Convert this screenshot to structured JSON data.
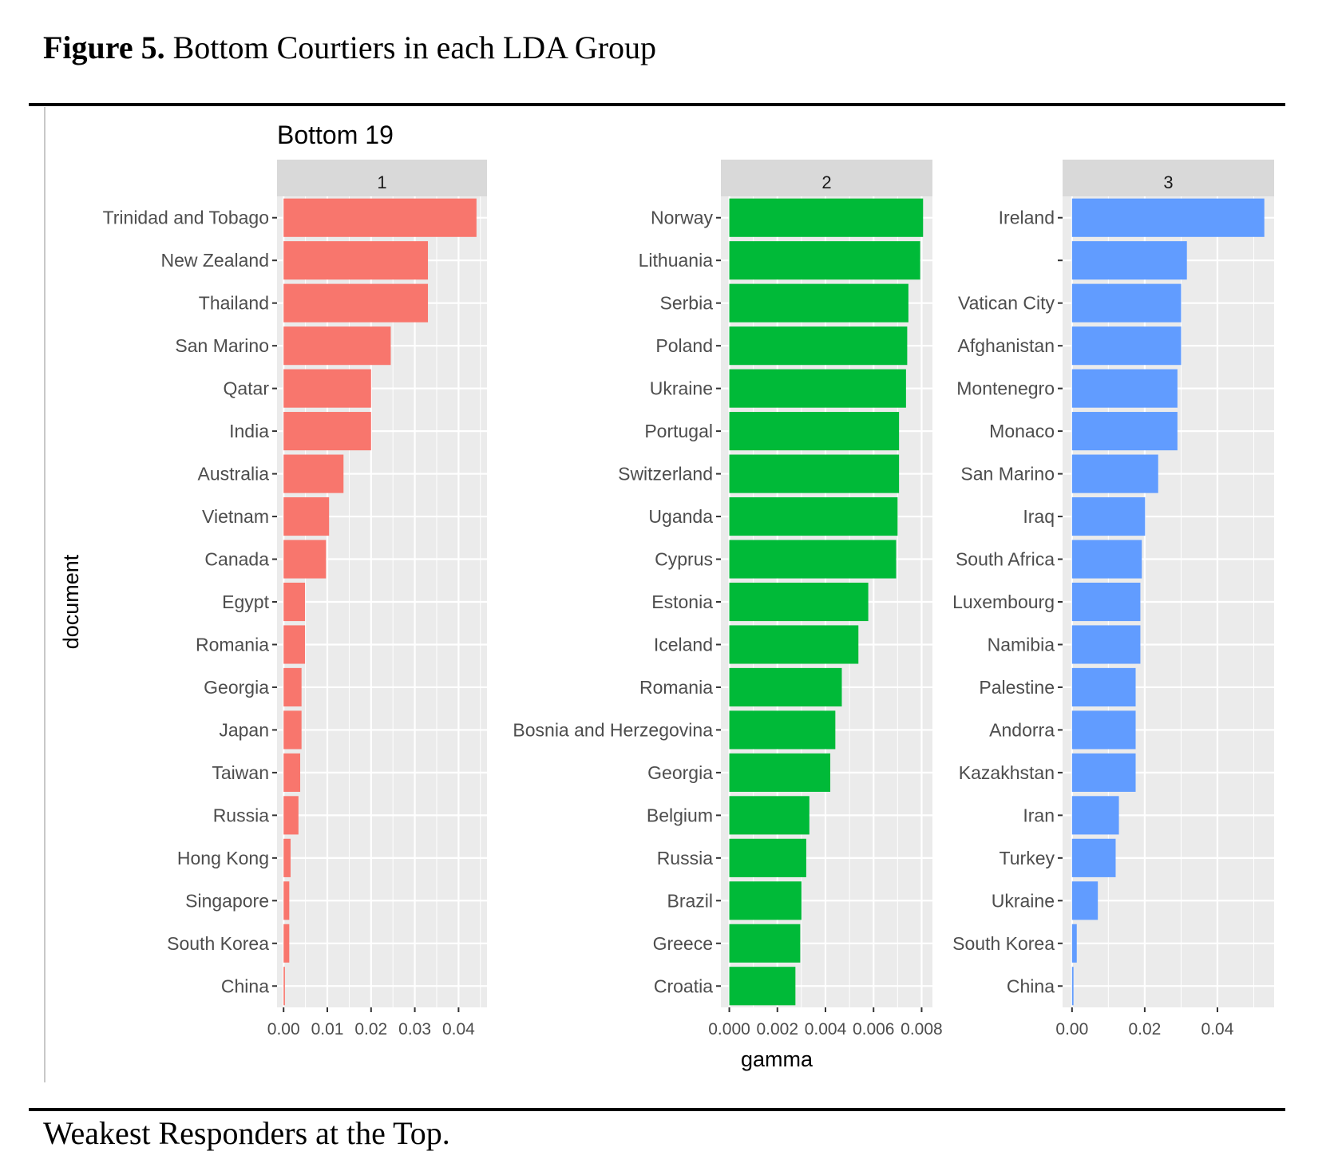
{
  "figure": {
    "caption_label": "Figure 5.",
    "caption_text": "Bottom Courtiers in each LDA Group",
    "note": "Weakest Responders at the Top."
  },
  "chart_data": {
    "type": "bar",
    "orientation": "horizontal",
    "title": "Bottom 19",
    "xlabel": "gamma",
    "ylabel": "document",
    "grid": true,
    "panels": [
      {
        "label": "1",
        "color": "#F8766D",
        "xlim": [
          -0.0015,
          0.0465
        ],
        "ticks": [
          0.0,
          0.01,
          0.02,
          0.03,
          0.04
        ],
        "tick_labels": [
          "0.00",
          "0.01",
          "0.02",
          "0.03",
          "0.04"
        ],
        "categories": [
          "Trinidad and Tobago",
          "New Zealand",
          "Thailand",
          "San Marino",
          "Qatar",
          "India",
          "Australia",
          "Vietnam",
          "Canada",
          "Egypt",
          "Romania",
          "Georgia",
          "Japan",
          "Taiwan",
          "Russia",
          "Hong Kong",
          "Singapore",
          "South Korea",
          "China"
        ],
        "values": [
          0.0441,
          0.033,
          0.033,
          0.0245,
          0.02,
          0.02,
          0.0137,
          0.0104,
          0.0097,
          0.0049,
          0.0049,
          0.0041,
          0.0041,
          0.0038,
          0.0034,
          0.0016,
          0.0013,
          0.0013,
          0.0003
        ]
      },
      {
        "label": "2",
        "color": "#00BA38",
        "xlim": [
          -0.00035,
          0.00845
        ],
        "ticks": [
          0.0,
          0.002,
          0.004,
          0.006,
          0.008
        ],
        "tick_labels": [
          "0.000",
          "0.002",
          "0.004",
          "0.006",
          "0.008"
        ],
        "categories": [
          "Norway",
          "Lithuania",
          "Serbia",
          "Poland",
          "Ukraine",
          "Portugal",
          "Switzerland",
          "Uganda",
          "Cyprus",
          "Estonia",
          "Iceland",
          "Romania",
          "Bosnia and Herzegovina",
          "Georgia",
          "Belgium",
          "Russia",
          "Brazil",
          "Greece",
          "Croatia"
        ],
        "values": [
          0.00806,
          0.00794,
          0.00745,
          0.0074,
          0.00735,
          0.00706,
          0.00706,
          0.007,
          0.00694,
          0.00578,
          0.00537,
          0.00468,
          0.00441,
          0.0042,
          0.00333,
          0.0032,
          0.003,
          0.00295,
          0.00275
        ]
      },
      {
        "label": "3",
        "color": "#619CFF",
        "xlim": [
          -0.0026,
          0.0556
        ],
        "ticks": [
          0.0,
          0.02,
          0.04
        ],
        "tick_labels": [
          "0.00",
          "0.02",
          "0.04"
        ],
        "categories": [
          "Ireland",
          "",
          "Vatican City",
          "Afghanistan",
          "Montenegro",
          "Monaco",
          "San Marino",
          "Iraq",
          "South Africa",
          "Luxembourg",
          "Namibia",
          "Palestine",
          "Andorra",
          "Kazakhstan",
          "Iran",
          "Turkey",
          "Ukraine",
          "South Korea",
          "China"
        ],
        "values": [
          0.0529,
          0.0316,
          0.03,
          0.03,
          0.029,
          0.029,
          0.0237,
          0.0201,
          0.0192,
          0.0188,
          0.0188,
          0.0175,
          0.0175,
          0.0175,
          0.0129,
          0.012,
          0.0071,
          0.0013,
          0.0004
        ]
      }
    ]
  }
}
